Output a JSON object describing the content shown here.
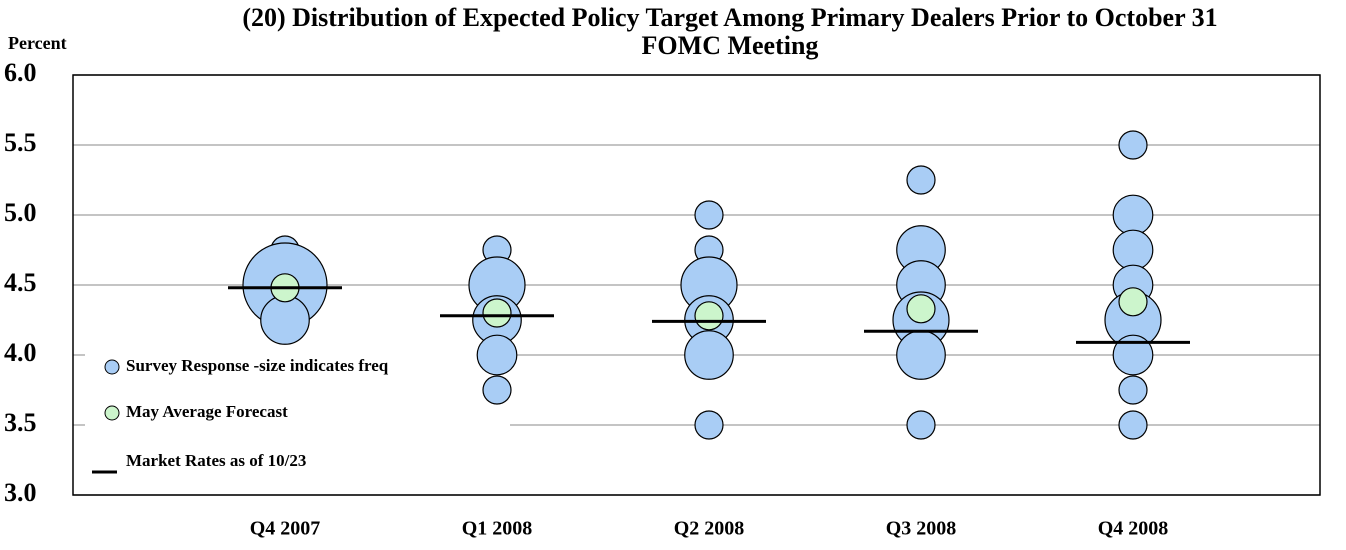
{
  "chart_data": {
    "type": "bubble",
    "title": "(20) Distribution of Expected Policy Target Among Primary Dealers Prior to October 31 FOMC Meeting",
    "y_label": "Percent",
    "categories": [
      "Q4 2007",
      "Q1 2008",
      "Q2 2008",
      "Q3 2008",
      "Q4 2008"
    ],
    "ylim": [
      3,
      6
    ],
    "yticks": [
      {
        "value": 3,
        "label": "3.0"
      },
      {
        "value": 3.5,
        "label": "3.5"
      },
      {
        "value": 4,
        "label": "4.0"
      },
      {
        "value": 4.5,
        "label": "4.5"
      },
      {
        "value": 5,
        "label": "5.0"
      },
      {
        "value": 5.5,
        "label": "5.5"
      },
      {
        "value": 6,
        "label": "6.0"
      }
    ],
    "grid": true,
    "legend": "left",
    "series": [
      {
        "name": "Survey Response -size indicates freq",
        "kind": "bubble",
        "color": "#a9cdf5",
        "x": [
          "Q4 2007",
          "Q4 2007",
          "Q4 2007",
          "Q1 2008",
          "Q1 2008",
          "Q1 2008",
          "Q1 2008",
          "Q1 2008",
          "Q2 2008",
          "Q2 2008",
          "Q2 2008",
          "Q2 2008",
          "Q2 2008",
          "Q2 2008",
          "Q3 2008",
          "Q3 2008",
          "Q3 2008",
          "Q3 2008",
          "Q3 2008",
          "Q3 2008",
          "Q4 2008",
          "Q4 2008",
          "Q4 2008",
          "Q4 2008",
          "Q4 2008",
          "Q4 2008",
          "Q4 2008",
          "Q4 2008"
        ],
        "values": [
          4.75,
          4.5,
          4.25,
          4.75,
          4.5,
          4.25,
          4.0,
          3.75,
          5.0,
          4.75,
          4.5,
          4.25,
          4.0,
          3.5,
          5.25,
          4.75,
          4.5,
          4.25,
          4.0,
          3.5,
          5.5,
          5.0,
          4.75,
          4.5,
          4.25,
          4.0,
          3.75,
          3.5
        ],
        "sizes": [
          1,
          9,
          3,
          1,
          4,
          3,
          2,
          1,
          1,
          1,
          4,
          3,
          3,
          1,
          1,
          3,
          3,
          4,
          3,
          1,
          1,
          2,
          2,
          2,
          4,
          2,
          1,
          1
        ]
      },
      {
        "name": "May Average Forecast",
        "kind": "dot",
        "color": "#ccf5cc",
        "x": [
          "Q4 2007",
          "Q1 2008",
          "Q2 2008",
          "Q3 2008",
          "Q4 2008"
        ],
        "values": [
          4.48,
          4.3,
          4.28,
          4.33,
          4.38
        ]
      },
      {
        "name": "Market Rates as of 10/23",
        "kind": "dash",
        "color": "#000000",
        "x": [
          "Q4 2007",
          "Q1 2008",
          "Q2 2008",
          "Q3 2008",
          "Q4 2008"
        ],
        "values": [
          4.48,
          4.28,
          4.24,
          4.17,
          4.09
        ]
      }
    ]
  }
}
